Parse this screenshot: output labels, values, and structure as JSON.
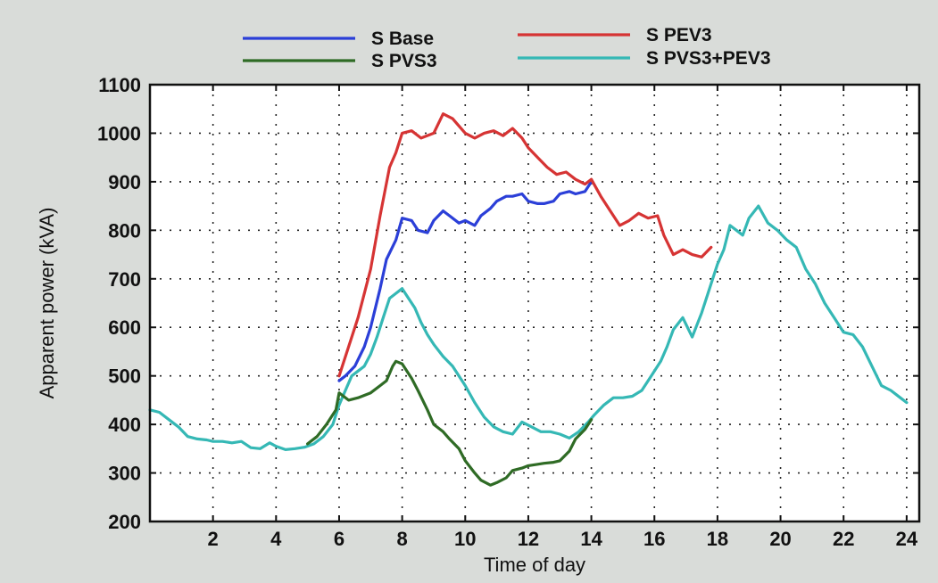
{
  "chart_data": {
    "type": "line",
    "xlabel": "Time of day",
    "ylabel": "Apparent power (kVA)",
    "xlim": [
      0,
      24.4
    ],
    "ylim": [
      200,
      1100
    ],
    "x_ticks": [
      2,
      4,
      6,
      8,
      10,
      12,
      14,
      16,
      18,
      20,
      22,
      24
    ],
    "y_ticks": [
      200,
      300,
      400,
      500,
      600,
      700,
      800,
      900,
      1000,
      1100
    ],
    "grid": true,
    "legend_position": "top-center",
    "series": [
      {
        "name": "S Base",
        "color": "#2b3fd8",
        "x": [
          6,
          6.2,
          6.5,
          6.8,
          7,
          7.3,
          7.5,
          7.8,
          8,
          8.3,
          8.5,
          8.8,
          9,
          9.3,
          9.5,
          9.8,
          10,
          10.3,
          10.5,
          10.8,
          11,
          11.3,
          11.5,
          11.8,
          12,
          12.3,
          12.5,
          12.8,
          13,
          13.3,
          13.5,
          13.8,
          14
        ],
        "y": [
          490,
          500,
          520,
          560,
          600,
          680,
          740,
          780,
          825,
          820,
          800,
          795,
          820,
          840,
          830,
          815,
          820,
          810,
          830,
          845,
          860,
          870,
          870,
          875,
          860,
          855,
          855,
          860,
          875,
          880,
          875,
          880,
          900
        ]
      },
      {
        "name": "S PVS3",
        "color": "#2f6b25",
        "x": [
          5,
          5.3,
          5.6,
          5.9,
          6,
          6.3,
          6.6,
          7,
          7.3,
          7.5,
          7.7,
          7.8,
          8,
          8.3,
          8.5,
          8.8,
          9,
          9.3,
          9.5,
          9.8,
          10,
          10.3,
          10.5,
          10.8,
          11,
          11.3,
          11.5,
          11.8,
          12,
          12.3,
          12.5,
          12.8,
          13,
          13.3,
          13.5,
          13.8,
          14
        ],
        "y": [
          360,
          375,
          400,
          430,
          465,
          450,
          455,
          465,
          480,
          490,
          520,
          530,
          525,
          495,
          470,
          430,
          400,
          385,
          370,
          350,
          325,
          300,
          285,
          275,
          280,
          290,
          305,
          310,
          315,
          318,
          320,
          322,
          325,
          345,
          370,
          390,
          410
        ]
      },
      {
        "name": "S PEV3",
        "color": "#d63434",
        "x": [
          6,
          6.3,
          6.6,
          7,
          7.3,
          7.6,
          7.8,
          8,
          8.3,
          8.6,
          9,
          9.3,
          9.6,
          10,
          10.3,
          10.6,
          10.9,
          11.2,
          11.5,
          11.8,
          12,
          12.3,
          12.6,
          12.9,
          13.2,
          13.5,
          13.8,
          14,
          14.3,
          14.6,
          14.9,
          15.2,
          15.5,
          15.8,
          16.1,
          16.3,
          16.6,
          16.9,
          17.2,
          17.5,
          17.8
        ],
        "y": [
          500,
          560,
          620,
          720,
          830,
          930,
          960,
          1000,
          1005,
          990,
          1000,
          1040,
          1030,
          1000,
          990,
          1000,
          1005,
          995,
          1010,
          990,
          970,
          950,
          930,
          915,
          920,
          905,
          895,
          905,
          870,
          840,
          810,
          820,
          835,
          825,
          830,
          790,
          750,
          760,
          750,
          745,
          765
        ]
      },
      {
        "name": "S PVS3+PEV3",
        "color": "#35b8b5",
        "x": [
          0,
          0.3,
          0.6,
          0.9,
          1.2,
          1.5,
          1.8,
          2,
          2.3,
          2.6,
          2.9,
          3.2,
          3.5,
          3.8,
          4,
          4.3,
          4.6,
          4.9,
          5.2,
          5.5,
          5.8,
          6,
          6.2,
          6.4,
          6.6,
          6.8,
          7,
          7.2,
          7.4,
          7.6,
          7.8,
          8,
          8.2,
          8.4,
          8.6,
          8.8,
          9,
          9.3,
          9.6,
          10,
          10.3,
          10.6,
          10.9,
          11.2,
          11.5,
          11.8,
          12.1,
          12.4,
          12.7,
          13,
          13.3,
          13.6,
          13.9,
          14.1,
          14.4,
          14.7,
          15,
          15.3,
          15.6,
          15.9,
          16.2,
          16.4,
          16.6,
          16.9,
          17.2,
          17.5,
          17.8,
          18,
          18.2,
          18.4,
          18.6,
          18.8,
          19,
          19.3,
          19.6,
          19.9,
          20.2,
          20.5,
          20.8,
          21.1,
          21.4,
          21.7,
          22,
          22.3,
          22.6,
          22.9,
          23.2,
          23.5,
          23.8,
          24
        ],
        "y": [
          430,
          425,
          410,
          395,
          375,
          370,
          368,
          365,
          365,
          362,
          365,
          352,
          350,
          362,
          355,
          348,
          350,
          353,
          360,
          375,
          400,
          440,
          470,
          500,
          510,
          520,
          545,
          580,
          620,
          660,
          670,
          680,
          660,
          640,
          610,
          585,
          565,
          540,
          520,
          480,
          445,
          415,
          395,
          385,
          380,
          405,
          395,
          385,
          385,
          380,
          372,
          385,
          405,
          420,
          440,
          455,
          455,
          458,
          470,
          500,
          530,
          560,
          595,
          620,
          580,
          630,
          690,
          730,
          760,
          810,
          800,
          790,
          825,
          850,
          815,
          800,
          780,
          765,
          720,
          690,
          650,
          620,
          590,
          585,
          560,
          520,
          480,
          470,
          455,
          445
        ]
      }
    ]
  }
}
